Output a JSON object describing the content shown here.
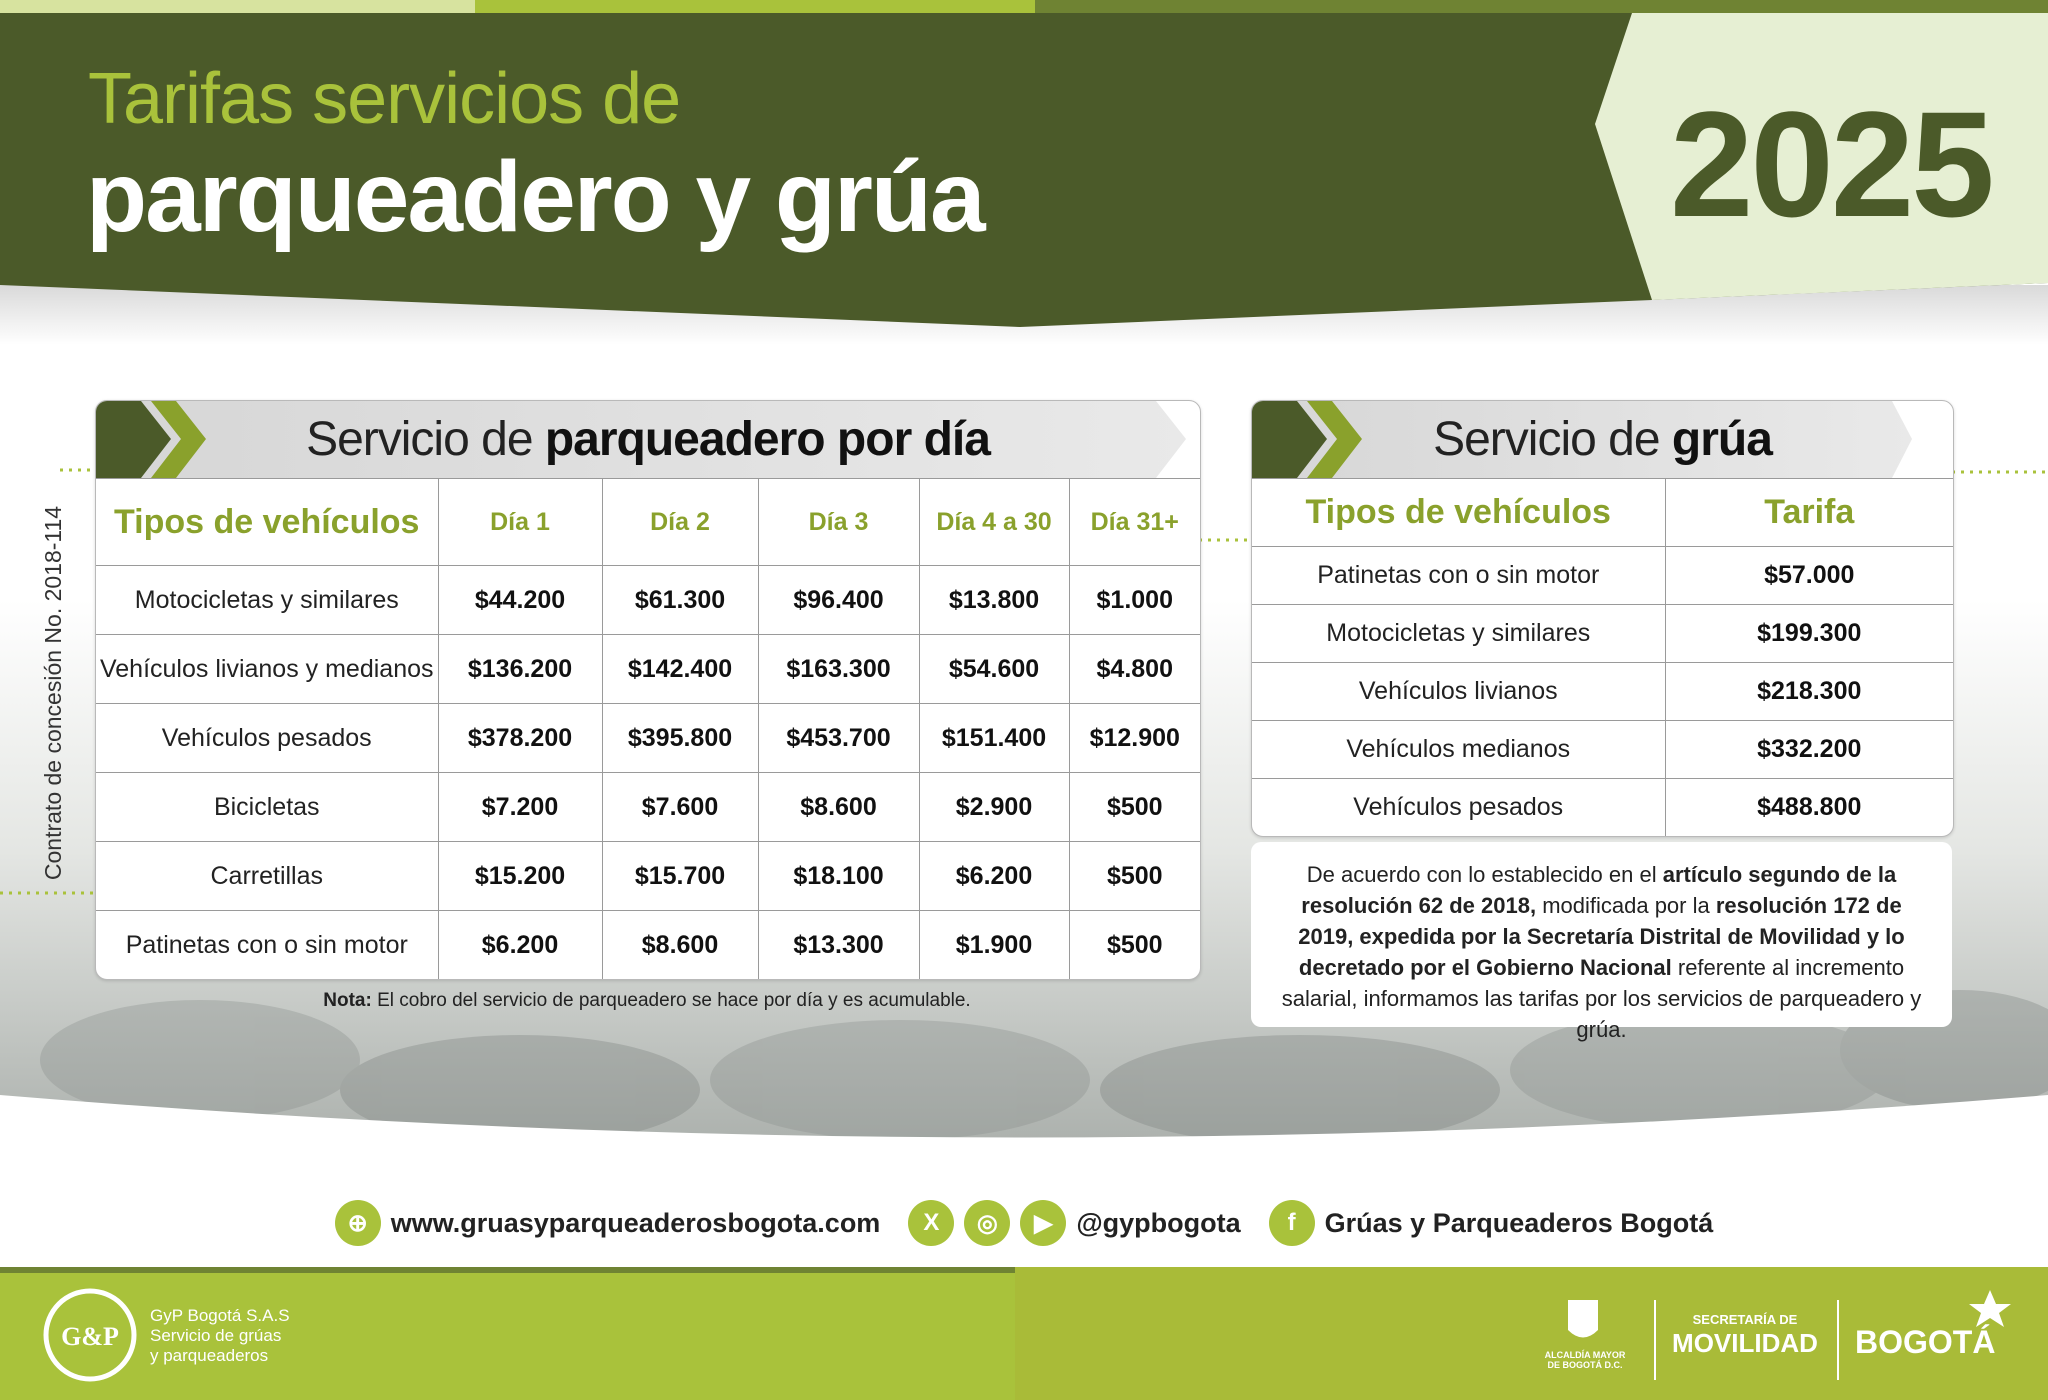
{
  "header": {
    "title_line1": "Tarifas servicios de",
    "title_line2": "parqueadero y grúa",
    "year": "2025"
  },
  "side_text": "Contrato de concesión No. 2018-114",
  "parking": {
    "title_prefix": "Servicio de ",
    "title_bold": "parqueadero por día",
    "columns": [
      "Tipos de vehículos",
      "Día 1",
      "Día 2",
      "Día 3",
      "Día 4 a 30",
      "Día 31+"
    ],
    "rows": [
      [
        "Motocicletas y similares",
        "$44.200",
        "$61.300",
        "$96.400",
        "$13.800",
        "$1.000"
      ],
      [
        "Vehículos livianos y medianos",
        "$136.200",
        "$142.400",
        "$163.300",
        "$54.600",
        "$4.800"
      ],
      [
        "Vehículos pesados",
        "$378.200",
        "$395.800",
        "$453.700",
        "$151.400",
        "$12.900"
      ],
      [
        "Bicicletas",
        "$7.200",
        "$7.600",
        "$8.600",
        "$2.900",
        "$500"
      ],
      [
        "Carretillas",
        "$15.200",
        "$15.700",
        "$18.100",
        "$6.200",
        "$500"
      ],
      [
        "Patinetas con o sin motor",
        "$6.200",
        "$8.600",
        "$13.300",
        "$1.900",
        "$500"
      ]
    ],
    "note_label": "Nota:",
    "note_text": " El cobro del servicio de parqueadero se hace por día y es acumulable."
  },
  "tow": {
    "title_prefix": "Servicio de ",
    "title_bold": "grúa",
    "columns": [
      "Tipos de vehículos",
      "Tarifa"
    ],
    "rows": [
      [
        "Patinetas con o sin motor",
        "$57.000"
      ],
      [
        "Motocicletas y similares",
        "$199.300"
      ],
      [
        "Vehículos livianos",
        "$218.300"
      ],
      [
        "Vehículos medianos",
        "$332.200"
      ],
      [
        "Vehículos pesados",
        "$488.800"
      ]
    ]
  },
  "notice": [
    {
      "text": "De acuerdo con lo establecido en el ",
      "bold": false
    },
    {
      "text": "artículo segundo de la resolución 62 de 2018,",
      "bold": true
    },
    {
      "text": " modificada por la ",
      "bold": false
    },
    {
      "text": "resolución 172 de 2019, expedida por la Secretaría Distrital de Movilidad y lo decretado por el Gobierno Nacional",
      "bold": true
    },
    {
      "text": " referente al incremento salarial, informamos las tarifas por los servicios de parqueadero y grúa.",
      "bold": false
    }
  ],
  "contacts": {
    "website": "www.gruasyparqueaderosbogota.com",
    "handle": "@gypbogota",
    "facebook": "Grúas y Parqueaderos Bogotá"
  },
  "company": {
    "name": "GyP Bogotá S.A.S",
    "line2": "Servicio de grúas",
    "line3": "y parqueaderos"
  },
  "logos": {
    "alcaldia": "ALCALDÍA MAYOR DE BOGOTÁ D.C.",
    "secretaria": "SECRETARÍA DE",
    "movilidad": "MOVILIDAD",
    "bogota": "BOGOTÁ"
  }
}
